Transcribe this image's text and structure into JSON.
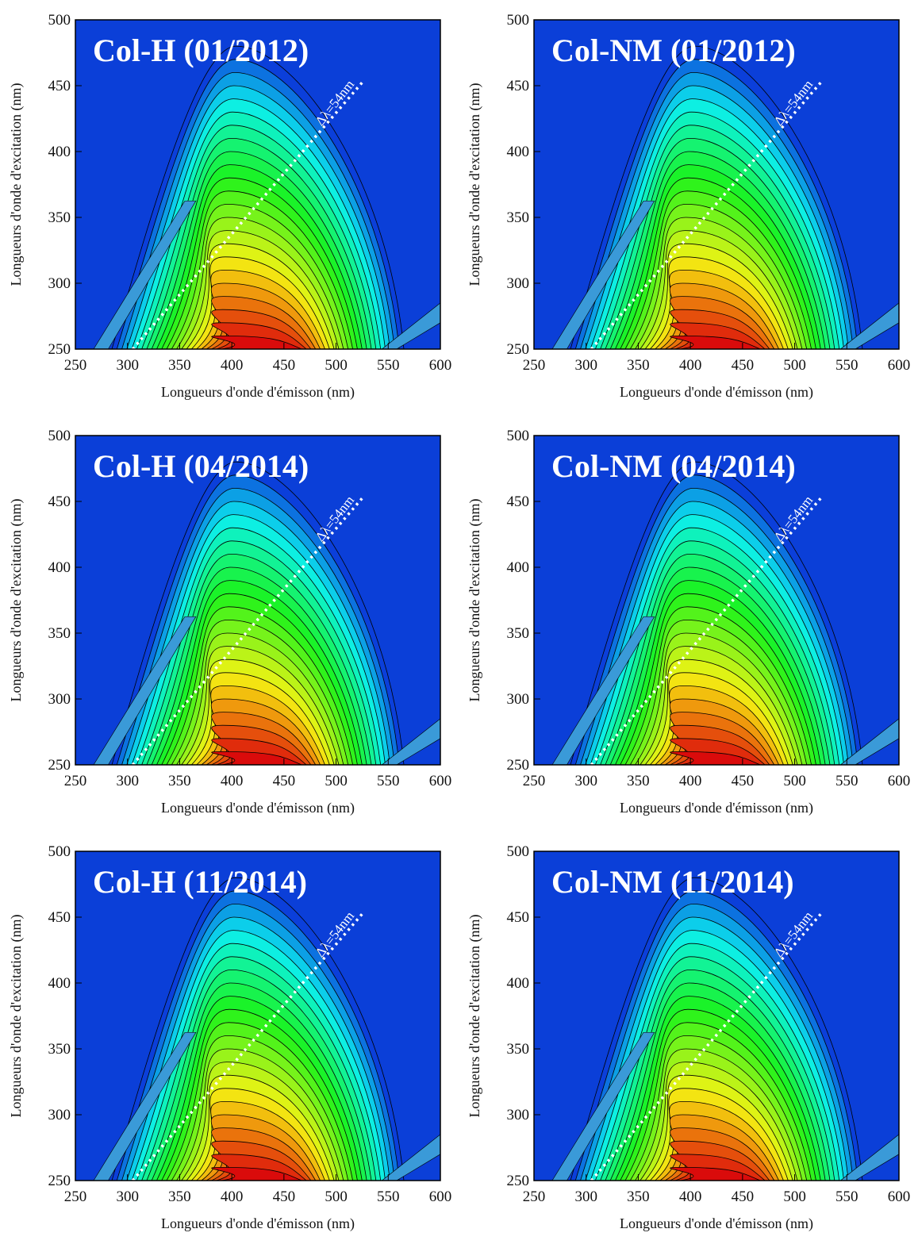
{
  "chart_data": [
    {
      "type": "contour",
      "title": "Col-H (01/2012)",
      "xlabel": "Longueurs d'onde d'émisson (nm)",
      "ylabel": "Longueurs d'onde d'excitation (nm)",
      "annotation": "Δλ=54nm",
      "xlim": [
        250,
        600
      ],
      "ylim": [
        250,
        500
      ],
      "xticks": [
        250,
        300,
        350,
        400,
        450,
        500,
        550,
        600
      ],
      "yticks": [
        250,
        300,
        350,
        400,
        450,
        500
      ]
    },
    {
      "type": "contour",
      "title": "Col-NM (01/2012)",
      "xlabel": "Longueurs d'onde d'émisson (nm)",
      "ylabel": "Longueurs d'onde d'excitation (nm)",
      "annotation": "Δλ=54nm",
      "xlim": [
        250,
        600
      ],
      "ylim": [
        250,
        500
      ],
      "xticks": [
        250,
        300,
        350,
        400,
        450,
        500,
        550,
        600
      ],
      "yticks": [
        250,
        300,
        350,
        400,
        450,
        500
      ]
    },
    {
      "type": "contour",
      "title": "Col-H (04/2014)",
      "xlabel": "Longueurs d'onde d'émisson (nm)",
      "ylabel": "Longueurs d'onde d'excitation (nm)",
      "annotation": "Δλ=54nm",
      "xlim": [
        250,
        600
      ],
      "ylim": [
        250,
        500
      ],
      "xticks": [
        250,
        300,
        350,
        400,
        450,
        500,
        550,
        600
      ],
      "yticks": [
        250,
        300,
        350,
        400,
        450,
        500
      ]
    },
    {
      "type": "contour",
      "title": "Col-NM (04/2014)",
      "xlabel": "Longueurs d'onde d'émisson (nm)",
      "ylabel": "Longueurs d'onde d'excitation (nm)",
      "annotation": "Δλ=54nm",
      "xlim": [
        250,
        600
      ],
      "ylim": [
        250,
        500
      ],
      "xticks": [
        250,
        300,
        350,
        400,
        450,
        500,
        550,
        600
      ],
      "yticks": [
        250,
        300,
        350,
        400,
        450,
        500
      ]
    },
    {
      "type": "contour",
      "title": "Col-H (11/2014)",
      "xlabel": "Longueurs d'onde d'émisson (nm)",
      "ylabel": "Longueurs d'onde d'excitation (nm)",
      "annotation": "Δλ=54nm",
      "xlim": [
        250,
        600
      ],
      "ylim": [
        250,
        500
      ],
      "xticks": [
        250,
        300,
        350,
        400,
        450,
        500,
        550,
        600
      ],
      "yticks": [
        250,
        300,
        350,
        400,
        450,
        500
      ]
    },
    {
      "type": "contour",
      "title": "Col-NM (11/2014)",
      "xlabel": "Longueurs d'onde d'émisson (nm)",
      "ylabel": "Longueurs d'onde d'excitation (nm)",
      "annotation": "Δλ=54nm",
      "xlim": [
        250,
        600
      ],
      "ylim": [
        250,
        500
      ],
      "xticks": [
        250,
        300,
        350,
        400,
        450,
        500,
        550,
        600
      ],
      "yticks": [
        250,
        300,
        350,
        400,
        450,
        500
      ]
    }
  ]
}
